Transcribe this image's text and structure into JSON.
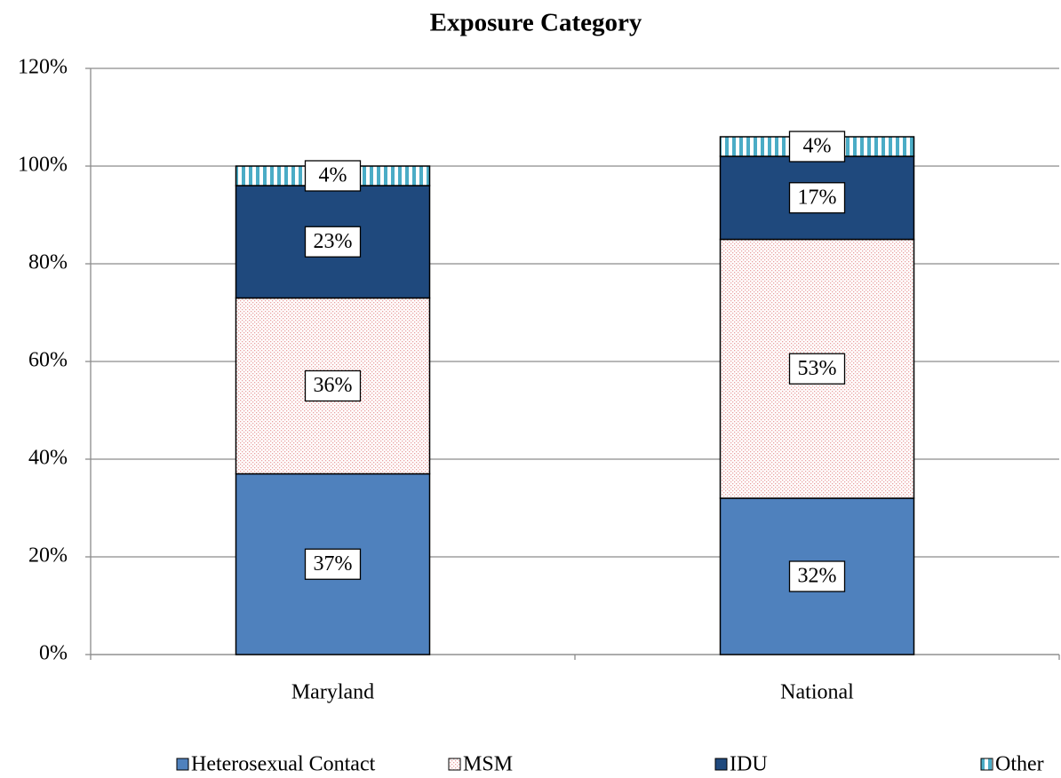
{
  "chart_data": {
    "type": "stacked_bar",
    "title": "Exposure Category",
    "categories": [
      "Maryland",
      "National"
    ],
    "series": [
      {
        "name": "Heterosexual Contact",
        "color": "#4f81bd",
        "pattern": "solid",
        "values": [
          37,
          32
        ],
        "value_labels": [
          "37%",
          "32%"
        ]
      },
      {
        "name": "MSM",
        "color": "#e8a0a0",
        "pattern": "dots",
        "values": [
          36,
          53
        ],
        "value_labels": [
          "36%",
          "53%"
        ]
      },
      {
        "name": "IDU",
        "color": "#1f497d",
        "pattern": "solid",
        "values": [
          23,
          17
        ],
        "value_labels": [
          "23%",
          "17%"
        ]
      },
      {
        "name": "Other",
        "color": "#4bacc6",
        "pattern": "stripes",
        "values": [
          4,
          4
        ],
        "value_labels": [
          "4%",
          "4%"
        ]
      }
    ],
    "ylim": [
      0,
      120
    ],
    "yticks": [
      {
        "value": 0,
        "label": "0%"
      },
      {
        "value": 20,
        "label": "20%"
      },
      {
        "value": 40,
        "label": "40%"
      },
      {
        "value": 60,
        "label": "60%"
      },
      {
        "value": 80,
        "label": "80%"
      },
      {
        "value": 100,
        "label": "100%"
      },
      {
        "value": 120,
        "label": "120%"
      }
    ],
    "grid": true
  }
}
